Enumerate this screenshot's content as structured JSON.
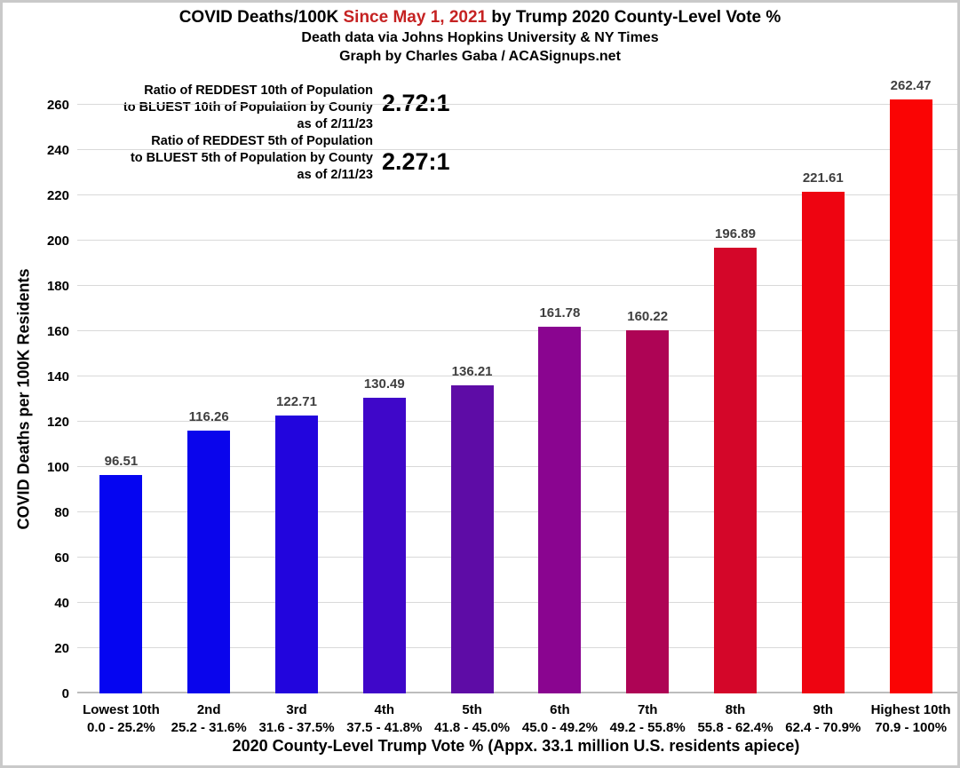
{
  "title": {
    "part1": "COVID Deaths/100K",
    "highlight": "Since May 1, 2021",
    "part3": "by Trump 2020 County-Level Vote %",
    "highlight_color": "#c52222",
    "line2": "Death data via Johns Hopkins University & NY Times",
    "line3": "Graph by Charles Gaba / ACASignups.net"
  },
  "annotations": [
    {
      "lines": [
        "Ratio of REDDEST 10th of Population",
        "to BLUEST 10th of Population by County",
        "as of 2/11/23"
      ],
      "value": "2.72:1"
    },
    {
      "lines": [
        "Ratio of REDDEST 5th of Population",
        "to BLUEST 5th of Population by County",
        "as of 2/11/23"
      ],
      "value": "2.27:1"
    }
  ],
  "chart_data": {
    "type": "bar",
    "title": "COVID Deaths/100K Since May 1, 2021 by Trump 2020 County-Level Vote %",
    "subtitle": "Death data via Johns Hopkins University & NY Times",
    "credit": "Graph by Charles Gaba / ACASignups.net",
    "xlabel": "2020 County-Level Trump Vote % (Appx. 33.1 million U.S. residents apiece)",
    "ylabel": "COVID Deaths per 100K Residents",
    "ylim": [
      0,
      260
    ],
    "ytick_step": 20,
    "grid": true,
    "legend": "none",
    "categories": [
      "Lowest 10th",
      "2nd",
      "3rd",
      "4th",
      "5th",
      "6th",
      "7th",
      "8th",
      "9th",
      "Highest 10th"
    ],
    "category_ranges": [
      "0.0 - 25.2%",
      "25.2 - 31.6%",
      "31.6 - 37.5%",
      "37.5 - 41.8%",
      "41.8 - 45.0%",
      "45.0 - 49.2%",
      "49.2 - 55.8%",
      "55.8 - 62.4%",
      "62.4 - 70.9%",
      "70.9 - 100%"
    ],
    "values": [
      96.51,
      116.26,
      122.71,
      130.49,
      136.21,
      161.78,
      160.22,
      196.89,
      221.61,
      262.47
    ],
    "bar_colors": [
      "#0505f1",
      "#0a05ec",
      "#2205dd",
      "#3f07c9",
      "#5e0ca6",
      "#8a0590",
      "#ae0455",
      "#d40629",
      "#ee0411",
      "#fa0404"
    ],
    "gridline_color": "#d9d9d9",
    "value_label_color": "#3f3f3f"
  }
}
